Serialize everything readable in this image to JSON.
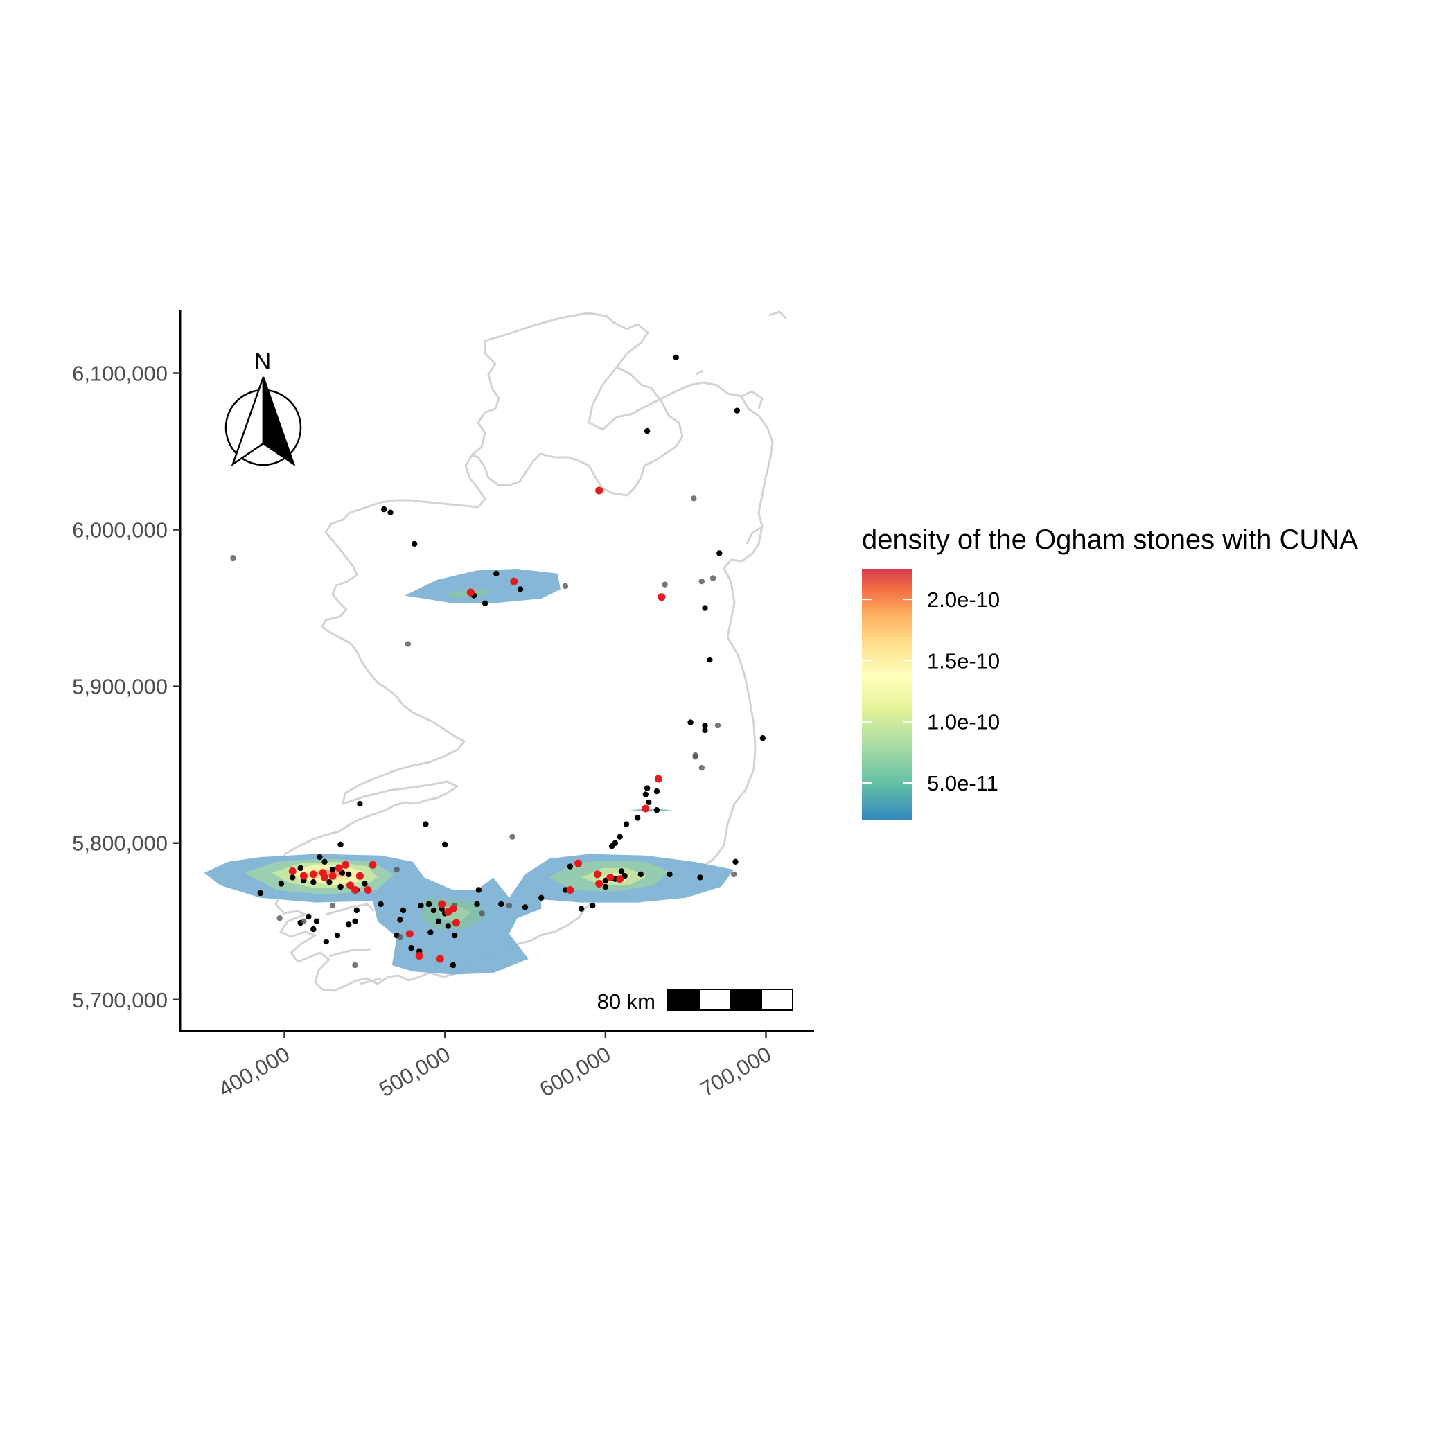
{
  "map": {
    "legend": {
      "title": "density of the Ogham stones with CUNA",
      "ticks": [
        {
          "value": 2e-10,
          "label": "2.0e-10"
        },
        {
          "value": 1.5e-10,
          "label": "1.5e-10"
        },
        {
          "value": 1e-10,
          "label": "1.0e-10"
        },
        {
          "value": 5e-11,
          "label": "5.0e-11"
        }
      ],
      "range": [
        2e-11,
        2.25e-10
      ],
      "colors": [
        "#3288bd",
        "#66c2a5",
        "#abdda4",
        "#e6f598",
        "#ffffbf",
        "#fee08b",
        "#fdae61",
        "#f46d43",
        "#d53e4f"
      ]
    },
    "x_axis": {
      "range": [
        335000,
        730000
      ],
      "ticks": [
        {
          "value": 400000,
          "label": "400,000"
        },
        {
          "value": 500000,
          "label": "500,000"
        },
        {
          "value": 600000,
          "label": "600,000"
        },
        {
          "value": 700000,
          "label": "700,000"
        }
      ]
    },
    "y_axis": {
      "range": [
        5680000,
        6140000
      ],
      "ticks": [
        {
          "value": 6100000,
          "label": "6,100,000"
        },
        {
          "value": 6000000,
          "label": "6,000,000"
        },
        {
          "value": 5900000,
          "label": "5,900,000"
        },
        {
          "value": 5800000,
          "label": "5,800,000"
        },
        {
          "value": 5700000,
          "label": "5,700,000"
        }
      ]
    },
    "scale_bar": {
      "label": "80 km"
    },
    "north_arrow": {
      "label": "N"
    },
    "colors": {
      "coastline": "#d3d3d3",
      "point_black": "#000000",
      "point_grey": "#555555",
      "point_red": "#e41a1c",
      "axis": "#000000"
    }
  },
  "chart_data": {
    "type": "scatter",
    "title": "",
    "xlabel": "",
    "ylabel": "",
    "xlim": [
      335000,
      730000
    ],
    "ylim": [
      5680000,
      6140000
    ],
    "series": [
      {
        "name": "",
        "color": "#000000",
        "points": [
          [
            644000,
            6110000
          ],
          [
            682000,
            6076000
          ],
          [
            626000,
            6063000
          ],
          [
            462000,
            6013000
          ],
          [
            466000,
            6011000
          ],
          [
            481000,
            5991000
          ],
          [
            671000,
            5985000
          ],
          [
            532000,
            5972000
          ],
          [
            547000,
            5962000
          ],
          [
            518000,
            5958000
          ],
          [
            525000,
            5953000
          ],
          [
            662000,
            5950000
          ],
          [
            665000,
            5917000
          ],
          [
            653000,
            5877000
          ],
          [
            662000,
            5875000
          ],
          [
            662000,
            5872000
          ],
          [
            698000,
            5867000
          ],
          [
            626000,
            5835000
          ],
          [
            625000,
            5831000
          ],
          [
            632000,
            5833000
          ],
          [
            627000,
            5826000
          ],
          [
            632000,
            5821000
          ],
          [
            620000,
            5816000
          ],
          [
            613000,
            5812000
          ],
          [
            609000,
            5804000
          ],
          [
            606000,
            5800000
          ],
          [
            604000,
            5798000
          ],
          [
            447000,
            5825000
          ],
          [
            488000,
            5812000
          ],
          [
            500000,
            5799000
          ],
          [
            435000,
            5799000
          ],
          [
            422000,
            5791000
          ],
          [
            425000,
            5788000
          ],
          [
            410000,
            5784000
          ],
          [
            430000,
            5783000
          ],
          [
            436000,
            5781000
          ],
          [
            440000,
            5780000
          ],
          [
            447000,
            5779000
          ],
          [
            405000,
            5778000
          ],
          [
            412000,
            5776000
          ],
          [
            418000,
            5775000
          ],
          [
            428000,
            5775000
          ],
          [
            435000,
            5772000
          ],
          [
            445000,
            5770000
          ],
          [
            398000,
            5774000
          ],
          [
            385000,
            5768000
          ],
          [
            450000,
            5774000
          ],
          [
            460000,
            5761000
          ],
          [
            445000,
            5757000
          ],
          [
            415000,
            5753000
          ],
          [
            420000,
            5750000
          ],
          [
            410000,
            5749000
          ],
          [
            418000,
            5745000
          ],
          [
            433000,
            5741000
          ],
          [
            440000,
            5748000
          ],
          [
            444000,
            5750000
          ],
          [
            426000,
            5737000
          ],
          [
            474000,
            5757000
          ],
          [
            472000,
            5751000
          ],
          [
            485000,
            5760000
          ],
          [
            490000,
            5761000
          ],
          [
            493000,
            5757000
          ],
          [
            498000,
            5758000
          ],
          [
            500000,
            5755000
          ],
          [
            496000,
            5750000
          ],
          [
            502000,
            5747000
          ],
          [
            491000,
            5743000
          ],
          [
            470000,
            5741000
          ],
          [
            479000,
            5733000
          ],
          [
            484000,
            5731000
          ],
          [
            506000,
            5741000
          ],
          [
            520000,
            5761000
          ],
          [
            535000,
            5761000
          ],
          [
            550000,
            5759000
          ],
          [
            560000,
            5765000
          ],
          [
            575000,
            5770000
          ],
          [
            578000,
            5785000
          ],
          [
            585000,
            5758000
          ],
          [
            592000,
            5760000
          ],
          [
            600000,
            5772000
          ],
          [
            606000,
            5777000
          ],
          [
            612000,
            5779000
          ],
          [
            622000,
            5780000
          ],
          [
            640000,
            5780000
          ],
          [
            659000,
            5778000
          ],
          [
            681000,
            5788000
          ],
          [
            610000,
            5782000
          ],
          [
            600000,
            5776000
          ],
          [
            505000,
            5722000
          ],
          [
            521000,
            5770000
          ]
        ]
      },
      {
        "name": "",
        "color": "#555555",
        "points": [
          [
            655000,
            6020000
          ],
          [
            637000,
            5965000
          ],
          [
            660000,
            5967000
          ],
          [
            667000,
            5969000
          ],
          [
            575000,
            5964000
          ],
          [
            368000,
            5982000
          ],
          [
            477000,
            5927000
          ],
          [
            670000,
            5875000
          ],
          [
            656000,
            5855000
          ],
          [
            660000,
            5848000
          ],
          [
            542000,
            5804000
          ],
          [
            470000,
            5783000
          ],
          [
            412000,
            5750000
          ],
          [
            430000,
            5760000
          ],
          [
            472000,
            5740000
          ],
          [
            506000,
            5760000
          ],
          [
            523000,
            5755000
          ],
          [
            540000,
            5760000
          ],
          [
            680000,
            5780000
          ],
          [
            656000,
            5856000
          ],
          [
            444000,
            5722000
          ],
          [
            397000,
            5752000
          ]
        ]
      },
      {
        "name": "",
        "color": "#e41a1c",
        "points": [
          [
            596000,
            6025000
          ],
          [
            635000,
            5957000
          ],
          [
            543000,
            5967000
          ],
          [
            516000,
            5960000
          ],
          [
            633000,
            5841000
          ],
          [
            625000,
            5822000
          ],
          [
            405000,
            5782000
          ],
          [
            412000,
            5779000
          ],
          [
            418000,
            5780000
          ],
          [
            424000,
            5781000
          ],
          [
            430000,
            5779000
          ],
          [
            434000,
            5784000
          ],
          [
            438000,
            5786000
          ],
          [
            447000,
            5779000
          ],
          [
            441000,
            5773000
          ],
          [
            444000,
            5770000
          ],
          [
            425000,
            5778000
          ],
          [
            478000,
            5742000
          ],
          [
            498000,
            5761000
          ],
          [
            502000,
            5756000
          ],
          [
            505000,
            5758000
          ],
          [
            507000,
            5749000
          ],
          [
            484000,
            5728000
          ],
          [
            497000,
            5726000
          ],
          [
            595000,
            5780000
          ],
          [
            603000,
            5778000
          ],
          [
            609000,
            5777000
          ],
          [
            583000,
            5787000
          ],
          [
            578000,
            5770000
          ],
          [
            596000,
            5774000
          ],
          [
            455000,
            5786000
          ],
          [
            452000,
            5770000
          ]
        ]
      }
    ]
  }
}
